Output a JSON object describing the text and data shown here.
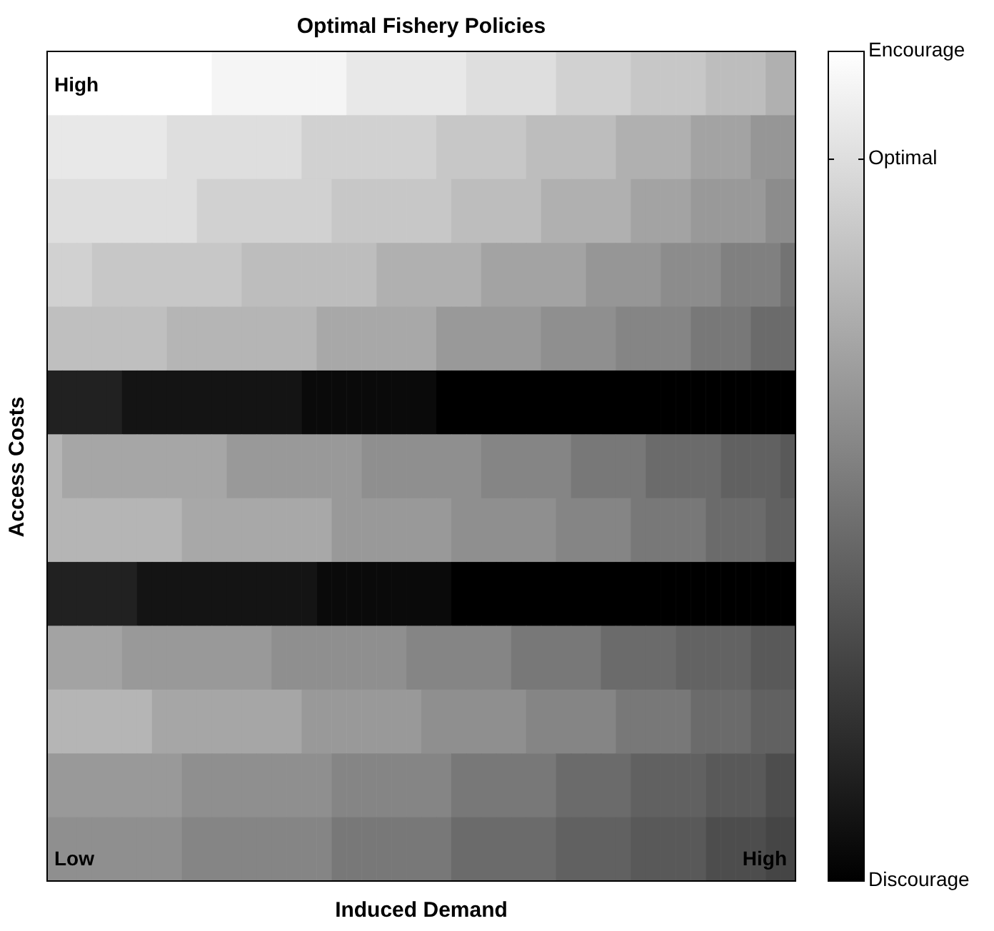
{
  "chart_data": {
    "type": "heatmap",
    "title": "Optimal Fishery Policies",
    "xlabel": "Induced Demand",
    "ylabel": "Access Costs",
    "annotations": [
      "High",
      "Low",
      "High"
    ],
    "categories": [
      null,
      null,
      null,
      null,
      null,
      null,
      null,
      null,
      null,
      null,
      null,
      null,
      null,
      null,
      null,
      null,
      null,
      null,
      null,
      null,
      null,
      null,
      null,
      null,
      null,
      null,
      null,
      null,
      null,
      null,
      null,
      null,
      null,
      null,
      null,
      null,
      null,
      null,
      null,
      null,
      null,
      null,
      null,
      null,
      null,
      null,
      null,
      null,
      null,
      null
    ],
    "y_categories": [
      null,
      null,
      null,
      null,
      null,
      null,
      null,
      null,
      null,
      null,
      null,
      null,
      null
    ],
    "clim": [
      0,
      1
    ],
    "cticks": [
      {
        "value": 0,
        "label": "Discourage"
      },
      {
        "value": 0.87,
        "label": "Optimal"
      },
      {
        "value": 1,
        "label": "Encourage"
      }
    ],
    "cells": [
      [
        1,
        1,
        1,
        1,
        1,
        1,
        1,
        1,
        1,
        1,
        1,
        0.96,
        0.96,
        0.96,
        0.96,
        0.96,
        0.96,
        0.96,
        0.96,
        0.96,
        0.91,
        0.91,
        0.91,
        0.91,
        0.91,
        0.91,
        0.91,
        0.91,
        0.87,
        0.87,
        0.87,
        0.87,
        0.87,
        0.87,
        0.82,
        0.82,
        0.82,
        0.82,
        0.82,
        0.78,
        0.78,
        0.78,
        0.78,
        0.78,
        0.74,
        0.74,
        0.74,
        0.74,
        0.69,
        0.69
      ],
      [
        0.91,
        0.91,
        0.91,
        0.91,
        0.91,
        0.91,
        0.91,
        0.91,
        0.87,
        0.87,
        0.87,
        0.87,
        0.87,
        0.87,
        0.87,
        0.87,
        0.87,
        0.82,
        0.82,
        0.82,
        0.82,
        0.82,
        0.82,
        0.82,
        0.82,
        0.82,
        0.78,
        0.78,
        0.78,
        0.78,
        0.78,
        0.78,
        0.74,
        0.74,
        0.74,
        0.74,
        0.74,
        0.74,
        0.69,
        0.69,
        0.69,
        0.69,
        0.69,
        0.64,
        0.64,
        0.64,
        0.64,
        0.59,
        0.59,
        0.59
      ],
      [
        0.87,
        0.87,
        0.87,
        0.87,
        0.87,
        0.87,
        0.87,
        0.87,
        0.87,
        0.87,
        0.82,
        0.82,
        0.82,
        0.82,
        0.82,
        0.82,
        0.82,
        0.82,
        0.82,
        0.78,
        0.78,
        0.78,
        0.78,
        0.78,
        0.78,
        0.78,
        0.78,
        0.74,
        0.74,
        0.74,
        0.74,
        0.74,
        0.74,
        0.69,
        0.69,
        0.69,
        0.69,
        0.69,
        0.69,
        0.64,
        0.64,
        0.64,
        0.64,
        0.6,
        0.6,
        0.6,
        0.6,
        0.6,
        0.55,
        0.55
      ],
      [
        0.82,
        0.82,
        0.82,
        0.78,
        0.78,
        0.78,
        0.78,
        0.78,
        0.78,
        0.78,
        0.78,
        0.78,
        0.78,
        0.74,
        0.74,
        0.74,
        0.74,
        0.74,
        0.74,
        0.74,
        0.74,
        0.74,
        0.69,
        0.69,
        0.69,
        0.69,
        0.69,
        0.69,
        0.69,
        0.64,
        0.64,
        0.64,
        0.64,
        0.64,
        0.64,
        0.64,
        0.59,
        0.59,
        0.59,
        0.59,
        0.59,
        0.55,
        0.55,
        0.55,
        0.55,
        0.5,
        0.5,
        0.5,
        0.5,
        0.45
      ],
      [
        0.75,
        0.75,
        0.75,
        0.75,
        0.75,
        0.75,
        0.75,
        0.75,
        0.71,
        0.71,
        0.71,
        0.71,
        0.71,
        0.71,
        0.71,
        0.71,
        0.71,
        0.71,
        0.66,
        0.66,
        0.66,
        0.66,
        0.66,
        0.66,
        0.66,
        0.66,
        0.6,
        0.6,
        0.6,
        0.6,
        0.6,
        0.6,
        0.6,
        0.56,
        0.56,
        0.56,
        0.56,
        0.56,
        0.52,
        0.52,
        0.52,
        0.52,
        0.52,
        0.47,
        0.47,
        0.47,
        0.47,
        0.42,
        0.42,
        0.42
      ],
      [
        0.13,
        0.13,
        0.13,
        0.13,
        0.13,
        0.08,
        0.08,
        0.08,
        0.08,
        0.08,
        0.08,
        0.08,
        0.08,
        0.08,
        0.08,
        0.08,
        0.08,
        0.04,
        0.04,
        0.04,
        0.04,
        0.04,
        0.04,
        0.04,
        0.04,
        0.04,
        0,
        0,
        0,
        0,
        0,
        0,
        0,
        0,
        0,
        0,
        0,
        0,
        0,
        0,
        0,
        0,
        0,
        0,
        0,
        0,
        0,
        0,
        0,
        0
      ],
      [
        0.71,
        0.65,
        0.65,
        0.65,
        0.65,
        0.65,
        0.65,
        0.65,
        0.65,
        0.65,
        0.65,
        0.65,
        0.6,
        0.6,
        0.6,
        0.6,
        0.6,
        0.6,
        0.6,
        0.6,
        0.6,
        0.56,
        0.56,
        0.56,
        0.56,
        0.56,
        0.56,
        0.56,
        0.56,
        0.52,
        0.52,
        0.52,
        0.52,
        0.52,
        0.52,
        0.47,
        0.47,
        0.47,
        0.47,
        0.47,
        0.42,
        0.42,
        0.42,
        0.42,
        0.42,
        0.38,
        0.38,
        0.38,
        0.38,
        0.35
      ],
      [
        0.71,
        0.71,
        0.71,
        0.71,
        0.71,
        0.71,
        0.71,
        0.71,
        0.71,
        0.66,
        0.66,
        0.66,
        0.66,
        0.66,
        0.66,
        0.66,
        0.66,
        0.66,
        0.66,
        0.6,
        0.6,
        0.6,
        0.6,
        0.6,
        0.6,
        0.6,
        0.6,
        0.56,
        0.56,
        0.56,
        0.56,
        0.56,
        0.56,
        0.56,
        0.52,
        0.52,
        0.52,
        0.52,
        0.52,
        0.47,
        0.47,
        0.47,
        0.47,
        0.47,
        0.42,
        0.42,
        0.42,
        0.42,
        0.38,
        0.38
      ],
      [
        0.13,
        0.13,
        0.13,
        0.13,
        0.13,
        0.13,
        0.08,
        0.08,
        0.08,
        0.08,
        0.08,
        0.08,
        0.08,
        0.08,
        0.08,
        0.08,
        0.08,
        0.08,
        0.04,
        0.04,
        0.04,
        0.04,
        0.04,
        0.04,
        0.04,
        0.04,
        0.04,
        0,
        0,
        0,
        0,
        0,
        0,
        0,
        0,
        0,
        0,
        0,
        0,
        0,
        0,
        0,
        0,
        0,
        0,
        0,
        0,
        0,
        0,
        0
      ],
      [
        0.64,
        0.64,
        0.64,
        0.64,
        0.64,
        0.6,
        0.6,
        0.6,
        0.6,
        0.6,
        0.6,
        0.6,
        0.6,
        0.6,
        0.6,
        0.56,
        0.56,
        0.56,
        0.56,
        0.56,
        0.56,
        0.56,
        0.56,
        0.56,
        0.52,
        0.52,
        0.52,
        0.52,
        0.52,
        0.52,
        0.52,
        0.47,
        0.47,
        0.47,
        0.47,
        0.47,
        0.47,
        0.42,
        0.42,
        0.42,
        0.42,
        0.42,
        0.39,
        0.39,
        0.39,
        0.39,
        0.39,
        0.35,
        0.35,
        0.35
      ],
      [
        0.71,
        0.71,
        0.71,
        0.71,
        0.71,
        0.71,
        0.71,
        0.65,
        0.65,
        0.65,
        0.65,
        0.65,
        0.65,
        0.65,
        0.65,
        0.65,
        0.65,
        0.6,
        0.6,
        0.6,
        0.6,
        0.6,
        0.6,
        0.6,
        0.6,
        0.56,
        0.56,
        0.56,
        0.56,
        0.56,
        0.56,
        0.56,
        0.52,
        0.52,
        0.52,
        0.52,
        0.52,
        0.52,
        0.47,
        0.47,
        0.47,
        0.47,
        0.47,
        0.42,
        0.42,
        0.42,
        0.42,
        0.38,
        0.38,
        0.38
      ],
      [
        0.6,
        0.6,
        0.6,
        0.6,
        0.6,
        0.6,
        0.6,
        0.6,
        0.6,
        0.56,
        0.56,
        0.56,
        0.56,
        0.56,
        0.56,
        0.56,
        0.56,
        0.56,
        0.56,
        0.52,
        0.52,
        0.52,
        0.52,
        0.52,
        0.52,
        0.52,
        0.52,
        0.47,
        0.47,
        0.47,
        0.47,
        0.47,
        0.47,
        0.47,
        0.42,
        0.42,
        0.42,
        0.42,
        0.42,
        0.38,
        0.38,
        0.38,
        0.38,
        0.38,
        0.35,
        0.35,
        0.35,
        0.35,
        0.3,
        0.3
      ],
      [
        0.56,
        0.56,
        0.56,
        0.56,
        0.56,
        0.56,
        0.56,
        0.56,
        0.56,
        0.52,
        0.52,
        0.52,
        0.52,
        0.52,
        0.52,
        0.52,
        0.52,
        0.52,
        0.52,
        0.47,
        0.47,
        0.47,
        0.47,
        0.47,
        0.47,
        0.47,
        0.47,
        0.42,
        0.42,
        0.42,
        0.42,
        0.42,
        0.42,
        0.42,
        0.38,
        0.38,
        0.38,
        0.38,
        0.38,
        0.35,
        0.35,
        0.35,
        0.35,
        0.35,
        0.3,
        0.3,
        0.3,
        0.3,
        0.27,
        0.27
      ]
    ]
  }
}
